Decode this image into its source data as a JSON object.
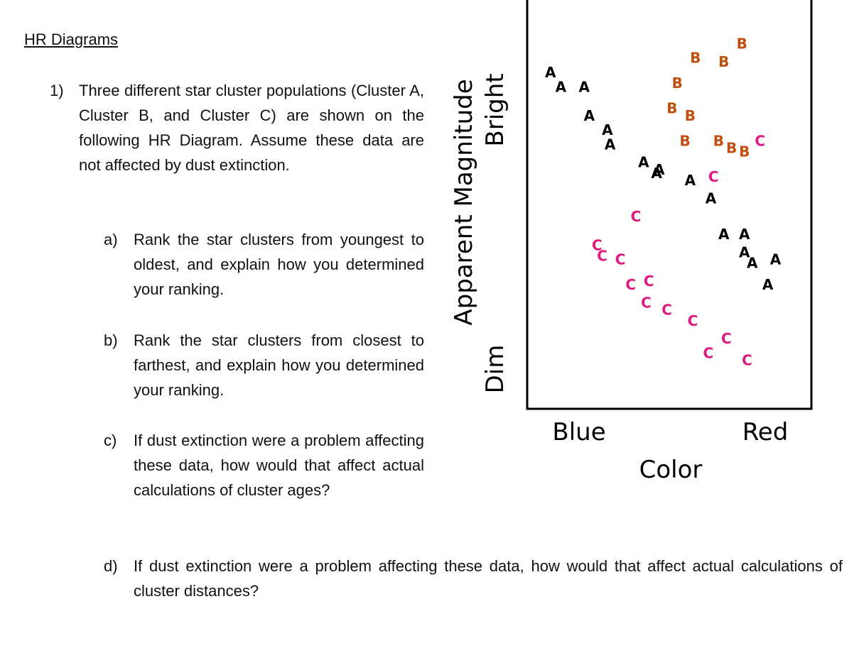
{
  "heading": "HR Diagrams",
  "question": {
    "number": "1)",
    "text": "Three different star cluster populations (Cluster A, Cluster B, and Cluster C) are shown on the following HR Diagram. Assume these data are not affected by dust extinction."
  },
  "parts": [
    {
      "label": "a)",
      "text": "Rank the star clusters from youngest to oldest, and explain how you determined your ranking."
    },
    {
      "label": "b)",
      "text": "Rank the star clusters from closest to farthest, and explain how you determined your ranking."
    },
    {
      "label": "c)",
      "text": "If dust extinction were a problem affecting these data, how would that affect actual calculations of cluster ages?"
    },
    {
      "label": "d)",
      "text": "If dust extinction were a problem affecting these data, how would that affect actual calculations of cluster distances?"
    }
  ],
  "chart_data": {
    "type": "scatter",
    "xlabel": "Color",
    "ylabel": "Apparent Magnitude",
    "x_end_labels": [
      "Blue",
      "Red"
    ],
    "y_end_labels": [
      "Dim",
      "Bright"
    ],
    "note": "qualitative axes (no numeric ticks); x = color index 0 (blue) to 100 (red), y = brightness 0 (dim) to 100 (bright), estimated",
    "xlim": [
      0,
      100
    ],
    "ylim": [
      0,
      100
    ],
    "colors": {
      "A": "#000000",
      "B": "#c0500f",
      "C": "#e0187f"
    },
    "series": [
      {
        "name": "A",
        "points": [
          [
            6,
            86
          ],
          [
            10,
            82
          ],
          [
            19,
            82
          ],
          [
            21,
            74
          ],
          [
            28,
            70
          ],
          [
            29,
            66
          ],
          [
            42,
            61
          ],
          [
            47,
            58
          ],
          [
            48,
            59
          ],
          [
            60,
            56
          ],
          [
            68,
            51
          ],
          [
            73,
            41
          ],
          [
            81,
            41
          ],
          [
            81,
            36
          ],
          [
            84,
            33
          ],
          [
            93,
            34
          ],
          [
            90,
            27
          ]
        ]
      },
      {
        "name": "B",
        "points": [
          [
            62,
            90
          ],
          [
            73,
            89
          ],
          [
            80,
            94
          ],
          [
            55,
            83
          ],
          [
            53,
            76
          ],
          [
            60,
            74
          ],
          [
            58,
            67
          ],
          [
            71,
            67
          ],
          [
            76,
            65
          ],
          [
            81,
            64
          ]
        ]
      },
      {
        "name": "C",
        "points": [
          [
            87,
            67
          ],
          [
            69,
            57
          ],
          [
            39,
            46
          ],
          [
            24,
            38
          ],
          [
            26,
            35
          ],
          [
            33,
            34
          ],
          [
            37,
            27
          ],
          [
            44,
            28
          ],
          [
            43,
            22
          ],
          [
            51,
            20
          ],
          [
            61,
            17
          ],
          [
            74,
            12
          ],
          [
            67,
            8
          ],
          [
            82,
            6
          ]
        ]
      }
    ]
  }
}
